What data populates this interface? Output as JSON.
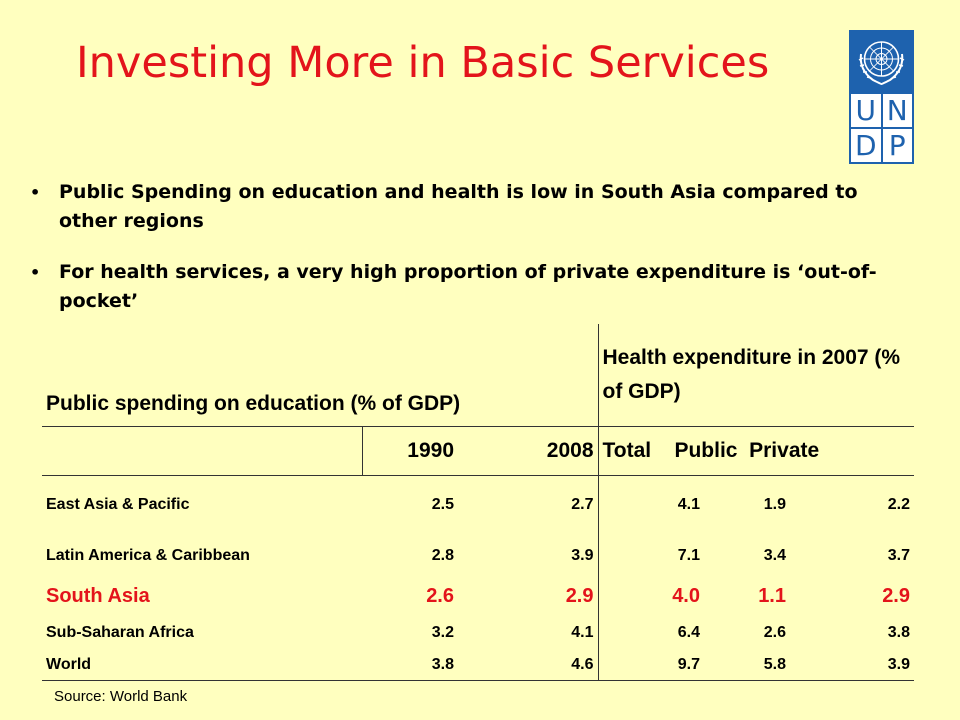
{
  "slide": {
    "title": "Investing More in Basic Services",
    "logo_letters": [
      "U",
      "N",
      "D",
      "P"
    ],
    "bullets": [
      "Public Spending on education and health is low in South Asia compared to other regions",
      "For health services, a very high proportion of private expenditure is ‘out-of-pocket’"
    ],
    "source": "Source: World Bank"
  },
  "table": {
    "header_education": "Public spending on education (% of GDP)",
    "header_health": "Health expenditure in 2007 (% of GDP)",
    "year_1": "1990",
    "year_2": "2008",
    "health_sub": "Total    Public  Private",
    "rows": [
      {
        "region": "East Asia & Pacific",
        "v1990": "2.5",
        "v2008": "2.7",
        "total": "4.1",
        "public": "1.9",
        "private": "2.2"
      },
      {
        "region": "Latin America & Caribbean",
        "v1990": "2.8",
        "v2008": "3.9",
        "total": "7.1",
        "public": "3.4",
        "private": "3.7"
      },
      {
        "region": "South Asia",
        "v1990": "2.6",
        "v2008": "2.9",
        "total": "4.0",
        "public": "1.1",
        "private": "2.9"
      },
      {
        "region": "Sub-Saharan Africa",
        "v1990": "3.2",
        "v2008": "4.1",
        "total": "6.4",
        "public": "2.6",
        "private": "3.8"
      },
      {
        "region": "World",
        "v1990": "3.8",
        "v2008": "4.6",
        "total": "9.7",
        "public": "5.8",
        "private": "3.9"
      }
    ]
  },
  "colors": {
    "background": "#FFFFBF",
    "title": "#E3141B",
    "highlight": "#E3141B",
    "logo_blue": "#1E62AE"
  },
  "icons": {
    "logo": "un-emblem-icon",
    "bullet": "bullet-dot-icon"
  }
}
